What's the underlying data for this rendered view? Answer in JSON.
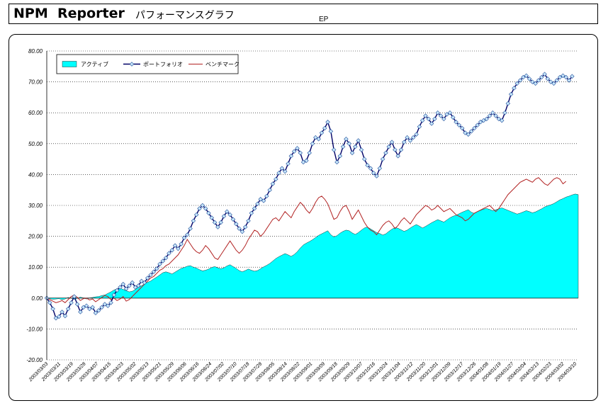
{
  "header": {
    "title": "NPM  Reporter",
    "subtitle": "パフォーマンスグラフ",
    "ep_label": "EP"
  },
  "chart_data": {
    "type": "area",
    "title": "",
    "xlabel": "",
    "ylabel": "",
    "ylim": [
      -20,
      80
    ],
    "yticks": [
      "80.00",
      "70.00",
      "60.00",
      "50.00",
      "40.00",
      "30.00",
      "20.00",
      "10.00",
      "0.00",
      "-10.00",
      "-20.00"
    ],
    "grid": true,
    "legend_position": "top-left",
    "x_tick_labels": [
      "2003/03/03",
      "2003/03/11",
      "2003/03/19",
      "2003/03/28",
      "2003/04/07",
      "2003/04/15",
      "2003/04/23",
      "2003/05/02",
      "2003/05/13",
      "2003/05/21",
      "2003/05/29",
      "2003/06/06",
      "2003/06/16",
      "2003/06/24",
      "2003/07/02",
      "2003/07/10",
      "2003/07/18",
      "2003/07/28",
      "2003/08/05",
      "2003/08/14",
      "2003/08/22",
      "2003/09/01",
      "2003/09/09",
      "2003/09/18",
      "2003/09/29",
      "2003/10/07",
      "2003/10/16",
      "2003/10/24",
      "2003/11/04",
      "2003/11/12",
      "2003/11/20",
      "2003/12/01",
      "2003/12/09",
      "2003/12/17",
      "2003/12/26",
      "2004/01/08",
      "2004/01/19",
      "2004/01/27",
      "2004/02/04",
      "2004/02/13",
      "2004/02/23",
      "2004/03/02",
      "2004/03/10"
    ],
    "colors": {
      "active": "#00ffff",
      "portfolio_line": "#000066",
      "portfolio_marker": "#c8e6fa",
      "portfolio_marker_edge": "#1f4e9a",
      "benchmark": "#b22222",
      "grid": "#000000"
    },
    "series": [
      {
        "name": "アクティブ",
        "kind": "area",
        "values": [
          0.0,
          -0.2,
          -0.4,
          -0.3,
          -0.2,
          -0.5,
          -0.3,
          0.2,
          0.0,
          -0.4,
          -0.1,
          0.3,
          0.0,
          -0.3,
          0.0,
          0.2,
          0.4,
          0.5,
          0.8,
          1.0,
          1.5,
          2.0,
          2.6,
          3.0,
          3.2,
          2.8,
          2.4,
          2.0,
          2.2,
          2.8,
          3.4,
          4.0,
          4.6,
          5.1,
          5.5,
          6.2,
          6.8,
          7.5,
          8.2,
          8.5,
          8.2,
          7.8,
          8.4,
          9.0,
          9.6,
          9.9,
          10.3,
          10.5,
          10.0,
          9.7,
          9.2,
          8.8,
          9.0,
          9.4,
          9.9,
          10.2,
          9.8,
          9.5,
          9.8,
          10.4,
          10.8,
          10.2,
          9.6,
          8.9,
          8.5,
          8.9,
          9.4,
          9.0,
          8.7,
          8.9,
          9.5,
          10.1,
          10.6,
          11.2,
          12.0,
          12.8,
          13.4,
          13.9,
          14.4,
          14.0,
          13.5,
          14.1,
          15.0,
          16.2,
          17.2,
          17.8,
          18.3,
          18.9,
          19.6,
          20.3,
          20.8,
          21.3,
          21.8,
          20.5,
          19.8,
          20.2,
          21.0,
          21.6,
          22.0,
          21.8,
          21.1,
          20.6,
          21.2,
          22.0,
          22.7,
          23.0,
          22.4,
          21.8,
          21.2,
          20.9,
          20.4,
          20.8,
          21.6,
          22.3,
          22.8,
          22.6,
          22.1,
          21.6,
          22.0,
          22.7,
          23.3,
          23.8,
          23.3,
          22.7,
          23.2,
          23.8,
          24.4,
          24.9,
          25.4,
          25.0,
          24.6,
          25.3,
          26.0,
          26.5,
          26.8,
          27.3,
          27.8,
          28.2,
          28.6,
          27.8,
          27.4,
          28.0,
          28.4,
          28.8,
          29.0,
          28.7,
          28.3,
          28.6,
          28.9,
          29.2,
          28.8,
          28.4,
          28.0,
          27.6,
          27.2,
          27.5,
          27.9,
          28.3,
          28.0,
          27.6,
          27.9,
          28.4,
          28.9,
          29.5,
          29.9,
          30.2,
          30.6,
          31.2,
          31.8,
          32.2,
          32.7,
          33.0,
          33.4,
          33.7,
          33.5
        ]
      },
      {
        "name": "ポートフォリオ",
        "kind": "line-marker",
        "values": [
          0.0,
          -1.5,
          -3.5,
          -6.5,
          -6.0,
          -4.5,
          -5.8,
          -3.5,
          -1.5,
          0.5,
          -2.0,
          -4.5,
          -3.0,
          -2.5,
          -3.5,
          -3.0,
          -4.8,
          -4.0,
          -3.0,
          -2.0,
          -2.5,
          -1.5,
          1.0,
          2.5,
          3.5,
          4.5,
          3.0,
          4.0,
          5.0,
          3.5,
          4.0,
          5.5,
          5.0,
          6.5,
          7.5,
          8.5,
          9.5,
          11.0,
          12.0,
          13.0,
          14.5,
          15.5,
          17.0,
          16.0,
          17.5,
          19.5,
          20.5,
          22.5,
          25.0,
          27.0,
          29.0,
          30.0,
          29.0,
          27.5,
          26.0,
          24.5,
          23.0,
          24.5,
          26.5,
          28.0,
          27.0,
          25.5,
          24.0,
          22.5,
          21.5,
          23.0,
          25.0,
          27.5,
          29.0,
          30.5,
          32.0,
          31.5,
          33.0,
          35.0,
          37.0,
          38.5,
          40.5,
          42.0,
          41.0,
          43.5,
          46.0,
          47.5,
          48.5,
          47.0,
          44.0,
          44.5,
          47.0,
          50.0,
          52.0,
          51.5,
          53.5,
          55.0,
          57.0,
          54.0,
          48.0,
          44.0,
          46.0,
          49.0,
          51.5,
          50.0,
          47.0,
          49.0,
          51.0,
          48.0,
          45.0,
          43.0,
          42.0,
          40.5,
          39.5,
          42.0,
          45.0,
          47.0,
          49.0,
          50.5,
          48.0,
          46.0,
          48.0,
          50.5,
          52.0,
          51.0,
          52.0,
          53.0,
          55.5,
          57.5,
          59.0,
          58.0,
          56.5,
          58.0,
          60.0,
          59.0,
          58.0,
          59.5,
          60.0,
          58.5,
          57.0,
          56.0,
          55.0,
          53.5,
          53.0,
          54.0,
          55.0,
          56.0,
          57.0,
          57.5,
          58.0,
          59.0,
          60.0,
          59.0,
          58.0,
          57.5,
          60.0,
          63.0,
          66.0,
          68.0,
          69.5,
          70.5,
          71.5,
          72.0,
          71.0,
          70.0,
          69.5,
          70.5,
          71.5,
          72.5,
          71.0,
          70.0,
          69.5,
          70.5,
          71.5,
          72.0,
          71.5,
          70.5,
          71.8
        ]
      },
      {
        "name": "ベンチマーク",
        "kind": "line",
        "values": [
          0.0,
          -0.5,
          -1.0,
          -1.5,
          -1.2,
          -0.8,
          -1.5,
          -0.5,
          0.5,
          1.0,
          0.2,
          -0.8,
          -0.2,
          0.0,
          -0.6,
          -0.3,
          -1.2,
          -0.5,
          0.2,
          0.8,
          0.5,
          -0.5,
          0.0,
          -0.8,
          -0.3,
          0.5,
          -1.0,
          -0.5,
          0.5,
          1.5,
          2.5,
          3.5,
          4.5,
          5.5,
          6.5,
          7.0,
          8.0,
          9.0,
          9.5,
          10.5,
          11.0,
          12.0,
          13.0,
          14.0,
          15.5,
          17.0,
          19.0,
          17.5,
          16.0,
          15.0,
          14.5,
          15.5,
          17.0,
          16.0,
          14.5,
          13.0,
          12.5,
          14.0,
          15.5,
          17.0,
          18.5,
          17.0,
          15.5,
          14.5,
          15.5,
          17.0,
          19.0,
          20.5,
          22.0,
          21.5,
          20.0,
          21.0,
          22.5,
          24.0,
          25.5,
          26.0,
          25.0,
          26.5,
          28.0,
          27.0,
          26.0,
          28.0,
          29.5,
          31.0,
          30.0,
          28.5,
          27.5,
          29.0,
          31.0,
          32.5,
          33.0,
          32.0,
          30.5,
          28.0,
          25.5,
          26.0,
          28.0,
          29.5,
          30.0,
          28.0,
          25.5,
          27.0,
          28.5,
          26.5,
          24.5,
          23.0,
          22.0,
          21.5,
          20.5,
          22.0,
          23.5,
          24.5,
          25.0,
          24.0,
          22.5,
          23.5,
          25.0,
          26.0,
          25.0,
          24.0,
          25.5,
          27.0,
          28.0,
          29.0,
          30.0,
          29.5,
          28.5,
          29.0,
          30.0,
          29.0,
          28.0,
          28.5,
          29.0,
          28.0,
          27.0,
          26.5,
          26.0,
          25.0,
          25.5,
          26.5,
          27.5,
          28.0,
          28.5,
          29.0,
          29.5,
          30.0,
          29.0,
          28.0,
          29.0,
          30.5,
          32.0,
          33.5,
          34.5,
          35.5,
          36.5,
          37.5,
          38.0,
          38.5,
          38.0,
          37.5,
          38.5,
          39.0,
          38.0,
          37.0,
          36.5,
          37.5,
          38.5,
          39.0,
          38.5,
          37.0,
          37.8
        ]
      }
    ]
  }
}
